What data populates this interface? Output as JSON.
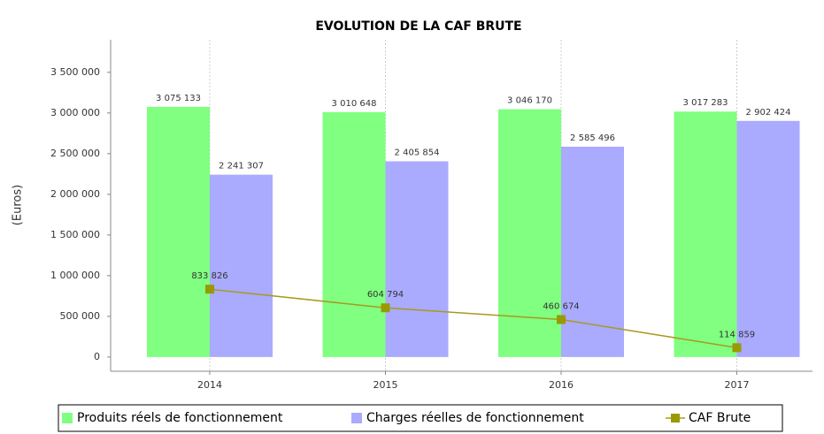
{
  "chart_data": {
    "type": "bar",
    "title": "EVOLUTION DE LA CAF BRUTE",
    "y_label": "(Euros)",
    "categories": [
      "2014",
      "2015",
      "2016",
      "2017"
    ],
    "series": [
      {
        "name": "Produits réels de fonctionnement",
        "type": "bar",
        "color": "#80ff80",
        "values": [
          3075133,
          3010648,
          3046170,
          3017283
        ],
        "value_labels": [
          "3 075 133",
          "3 010 648",
          "3 046 170",
          "3 017 283"
        ]
      },
      {
        "name": "Charges réelles de fonctionnement",
        "type": "bar",
        "color": "#aaaaff",
        "values": [
          2241307,
          2405854,
          2585496,
          2902424
        ],
        "value_labels": [
          "2 241 307",
          "2 405 854",
          "2 585 496",
          "2 902 424"
        ]
      },
      {
        "name": "CAF Brute",
        "type": "line",
        "color": "#a89a1e",
        "values": [
          833826,
          604794,
          460674,
          114859
        ],
        "value_labels": [
          "833 826",
          "604 794",
          "460 674",
          "114 859"
        ]
      }
    ],
    "ylim": [
      -175000,
      3900000
    ],
    "yticks": [
      0,
      {
        "value": 500000,
        "label": "500 000"
      },
      {
        "value": 1000000,
        "label": "1 000 000"
      },
      {
        "value": 1500000,
        "label": "1 500 000"
      },
      {
        "value": 2000000,
        "label": "2 000 000"
      },
      {
        "value": 2500000,
        "label": "2 500 000"
      },
      {
        "value": 3000000,
        "label": "3 000 000"
      },
      {
        "value": 3500000,
        "label": "3 500 000"
      }
    ],
    "grid_x": true
  }
}
